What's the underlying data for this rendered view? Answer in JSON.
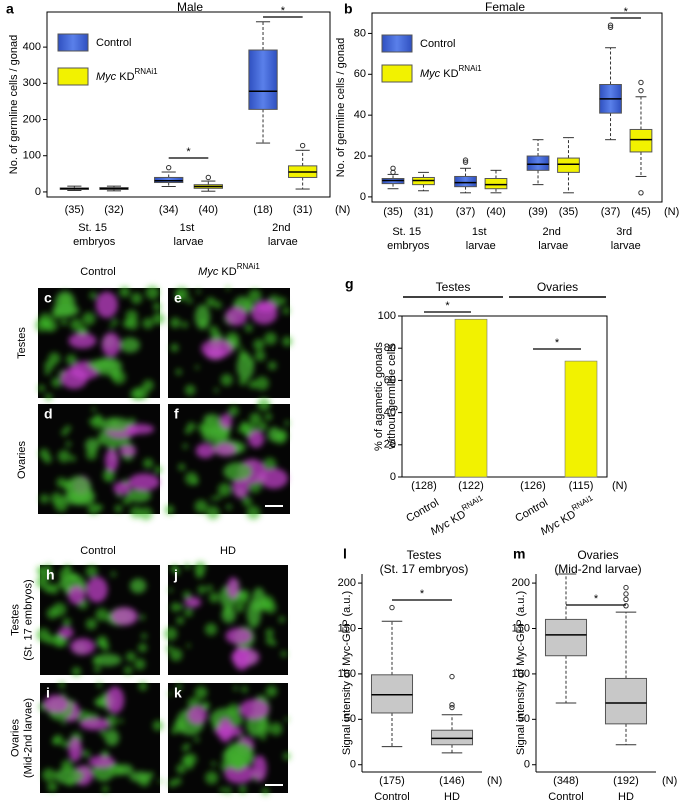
{
  "chart_data": [
    {
      "type": "box",
      "panel": "a",
      "title": "Male",
      "ylabel": [
        "No. of germline cells / gonad"
      ],
      "categories": [
        "St. 15 embryos",
        "1st larvae",
        "2nd larvae"
      ],
      "series": [
        {
          "name": "Control",
          "color": "#3d62d0",
          "n": [
            "(35)",
            "(34)",
            "(18)"
          ],
          "values": [
            {
              "min": 4,
              "q1": 7,
              "median": 9,
              "q3": 11,
              "max": 16,
              "outliers": []
            },
            {
              "min": 15,
              "q1": 26,
              "median": 31,
              "q3": 40,
              "max": 55,
              "outliers": [
                67
              ]
            },
            {
              "min": 135,
              "q1": 228,
              "median": 278,
              "q3": 392,
              "max": 470,
              "outliers": []
            }
          ]
        },
        {
          "name": "Myc KDRNAi1",
          "color": "#f2f200",
          "n": [
            "(32)",
            "(40)",
            "(31)"
          ],
          "values": [
            {
              "min": 3,
              "q1": 7,
              "median": 9,
              "q3": 12,
              "max": 16,
              "outliers": []
            },
            {
              "min": 2,
              "q1": 10,
              "median": 15,
              "q3": 20,
              "max": 30,
              "outliers": [
                40
              ]
            },
            {
              "min": 8,
              "q1": 40,
              "median": 55,
              "q3": 72,
              "max": 115,
              "outliers": [
                128
              ]
            }
          ]
        }
      ],
      "n_label": "(N)",
      "ylim": [
        -14,
        497
      ],
      "yticks": [
        0,
        100,
        200,
        300,
        400
      ],
      "annotations": [
        "*",
        "*"
      ],
      "legend": "upper left"
    },
    {
      "type": "box",
      "panel": "b",
      "title": "Female",
      "ylabel": [
        "No. of germline cells / gonad"
      ],
      "categories": [
        "St. 15 embryos",
        "1st larvae",
        "2nd larvae",
        "3rd larvae"
      ],
      "series": [
        {
          "name": "Control",
          "color": "#3d62d0",
          "n": [
            "(35)",
            "(37)",
            "(39)",
            "(37)"
          ],
          "values": [
            {
              "min": 4,
              "q1": 6.5,
              "median": 8,
              "q3": 9,
              "max": 11,
              "outliers": [
                12,
                14
              ]
            },
            {
              "min": 2,
              "q1": 5,
              "median": 7,
              "q3": 10,
              "max": 14,
              "outliers": [
                17,
                18
              ]
            },
            {
              "min": 6,
              "q1": 13,
              "median": 16,
              "q3": 20,
              "max": 28,
              "outliers": []
            },
            {
              "min": 28,
              "q1": 41,
              "median": 48,
              "q3": 55,
              "max": 73,
              "outliers": [
                83,
                84
              ]
            }
          ]
        },
        {
          "name": "Myc KDRNAi1",
          "color": "#f2f200",
          "n": [
            "(31)",
            "(40)",
            "(35)",
            "(45)"
          ],
          "values": [
            {
              "min": 3,
              "q1": 6,
              "median": 8,
              "q3": 9.5,
              "max": 12,
              "outliers": []
            },
            {
              "min": 2,
              "q1": 4,
              "median": 6,
              "q3": 9,
              "max": 13,
              "outliers": []
            },
            {
              "min": 2,
              "q1": 12,
              "median": 16,
              "q3": 19,
              "max": 29,
              "outliers": []
            },
            {
              "min": 10,
              "q1": 22,
              "median": 28,
              "q3": 33,
              "max": 49,
              "outliers": [
                2,
                52,
                56
              ]
            }
          ]
        }
      ],
      "n_label": "(N)",
      "ylim": [
        -2.5,
        90
      ],
      "yticks": [
        0,
        20,
        40,
        60,
        80
      ],
      "annotations": [
        "*"
      ],
      "legend": "upper left"
    },
    {
      "type": "bar",
      "panel": "g",
      "ylabel": [
        "% of agametic gonads",
        "without germline cells"
      ],
      "groups": [
        "Testes",
        "Ovaries"
      ],
      "categories": [
        "Control",
        "Myc KDRNAi1",
        "Control",
        "Myc KDRNAi1"
      ],
      "values": [
        0,
        98,
        0,
        72
      ],
      "color": "#f2f200",
      "n": [
        "(128)",
        "(122)",
        "(126)",
        "(115)"
      ],
      "n_label": "(N)",
      "ylim": [
        0,
        100
      ],
      "yticks": [
        0,
        20,
        40,
        60,
        80,
        100
      ],
      "annotations": [
        "*",
        "*"
      ]
    },
    {
      "type": "box",
      "panel": "l",
      "title": "Testes",
      "subtitle": "(St. 17 embryos)",
      "ylabel": [
        "Signal intensity of Myc-GFP (a.u.)"
      ],
      "categories": [
        "Control",
        "HD"
      ],
      "series": [
        {
          "color": "#c8c8c8",
          "n": [
            "(175)",
            "(146)"
          ],
          "values": [
            {
              "min": 20,
              "q1": 57,
              "median": 77,
              "q3": 99,
              "max": 158,
              "outliers": [
                173
              ]
            },
            {
              "min": 13,
              "q1": 22,
              "median": 29,
              "q3": 38,
              "max": 55,
              "outliers": [
                63,
                66,
                97
              ]
            }
          ]
        }
      ],
      "n_label": "(N)",
      "ylim": [
        -8,
        210
      ],
      "yticks": [
        0,
        50,
        100,
        150,
        200
      ],
      "annotations": [
        "*"
      ]
    },
    {
      "type": "box",
      "panel": "m",
      "title": "Ovaries",
      "subtitle": "(Mid-2nd larvae)",
      "ylabel": [
        "Signal intensity of Myc-GFP (a.u.)"
      ],
      "categories": [
        "Control",
        "HD"
      ],
      "series": [
        {
          "color": "#c8c8c8",
          "n": [
            "(348)",
            "(192)"
          ],
          "values": [
            {
              "min": 68,
              "q1": 120,
              "median": 143,
              "q3": 160,
              "max": 210,
              "outliers": []
            },
            {
              "min": 22,
              "q1": 45,
              "median": 68,
              "q3": 95,
              "max": 168,
              "outliers": [
                175,
                182,
                188,
                195
              ]
            }
          ]
        }
      ],
      "n_label": "(N)",
      "ylim": [
        -8,
        210
      ],
      "yticks": [
        0,
        50,
        100,
        150,
        200
      ],
      "annotations": [
        "*"
      ]
    }
  ],
  "images": {
    "top": {
      "columns": [
        "Control",
        "Myc KDRNAi1"
      ],
      "rows": [
        [
          "Testes"
        ],
        [
          "Ovaries"
        ]
      ],
      "panels": [
        "c",
        "e",
        "d",
        "f"
      ]
    },
    "bottom": {
      "columns": [
        "Control",
        "HD"
      ],
      "rows": [
        [
          "Testes",
          "(St. 17 embryos)"
        ],
        [
          "Ovaries",
          "(Mid-2nd larvae)"
        ]
      ],
      "panels": [
        "h",
        "j",
        "i",
        "k"
      ]
    }
  }
}
